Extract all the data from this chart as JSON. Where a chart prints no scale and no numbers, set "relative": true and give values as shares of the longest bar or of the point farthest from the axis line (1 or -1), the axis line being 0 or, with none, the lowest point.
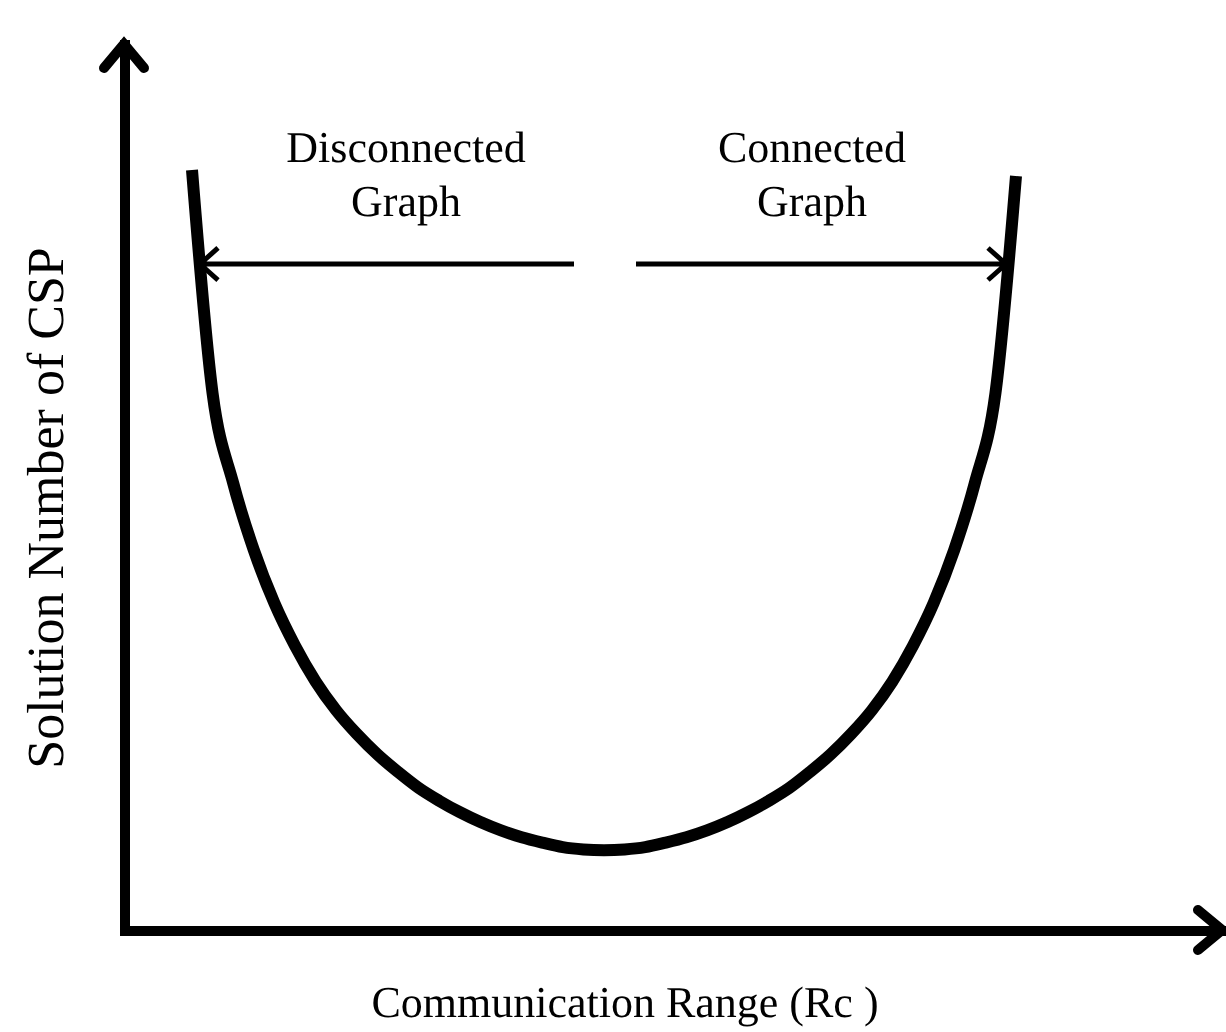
{
  "chart_data": {
    "type": "line",
    "xlabel": "Communication Range (Rc )",
    "ylabel": "Solution Number of CSP",
    "relative": true,
    "line_style": "solid",
    "categories": [
      null,
      null,
      null,
      null,
      null,
      null,
      null,
      null,
      null,
      null,
      null,
      null,
      null,
      null,
      null,
      null,
      null,
      null,
      null,
      null,
      null,
      null,
      null,
      null,
      null,
      null,
      null,
      null,
      null,
      null,
      null,
      null,
      null,
      null,
      null,
      null,
      null,
      null,
      null,
      null,
      null
    ],
    "series": [
      {
        "color": "#000000",
        "values": [
          1.0,
          0.706,
          0.588,
          0.5,
          0.43,
          0.374,
          0.327,
          0.289,
          0.258,
          0.231,
          0.208,
          0.187,
          0.17,
          0.155,
          0.142,
          0.131,
          0.122,
          0.115,
          0.109,
          0.106,
          0.105,
          0.106,
          0.109,
          0.115,
          0.122,
          0.131,
          0.142,
          0.155,
          0.17,
          0.187,
          0.208,
          0.231,
          0.258,
          0.289,
          0.327,
          0.374,
          0.43,
          0.5,
          0.588,
          0.706,
          0.992
        ]
      }
    ],
    "annotations": [
      "Disconnected Graph",
      "Connected Graph"
    ]
  }
}
